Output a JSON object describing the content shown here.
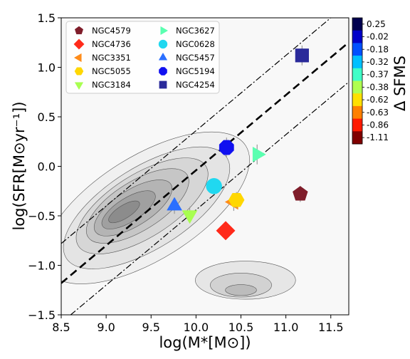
{
  "chart_data": {
    "type": "scatter",
    "xlabel": "log(M*[M⊙])",
    "ylabel": "log(SFR[M⊙yr⁻¹])",
    "xlim": [
      8.5,
      11.7
    ],
    "ylim": [
      -1.5,
      1.5
    ],
    "xticks": [
      "8.5",
      "9.0",
      "9.5",
      "10.0",
      "10.5",
      "11.0",
      "11.5"
    ],
    "yticks": [
      "−1.5",
      "−1.0",
      "−0.5",
      "0.0",
      "0.5",
      "1.0",
      "1.5"
    ],
    "legend_position": "top-left",
    "grid": false,
    "main_sequence": {
      "slope": 0.76,
      "intercept": -7.64,
      "scatter_offset": 0.4
    },
    "series": [
      {
        "name": "NGC4579",
        "x": 11.16,
        "y": -0.28,
        "yerr": 0.08,
        "marker": "pentagon",
        "color": "#7f1d2a"
      },
      {
        "name": "NGC4736",
        "x": 10.33,
        "y": -0.65,
        "yerr": 0.07,
        "marker": "diamond",
        "color": "#ff2a1a"
      },
      {
        "name": "NGC3351",
        "x": 10.42,
        "y": -0.36,
        "yerr": 0.09,
        "marker": "triangle-left",
        "color": "#ff8c1a"
      },
      {
        "name": "NGC5055",
        "x": 10.45,
        "y": -0.34,
        "yerr": 0.08,
        "marker": "hexagon",
        "color": "#ffd700"
      },
      {
        "name": "NGC3184",
        "x": 9.93,
        "y": -0.49,
        "yerr": 0.08,
        "marker": "triangle-down",
        "color": "#a8ff50"
      },
      {
        "name": "NGC3627",
        "x": 10.68,
        "y": 0.12,
        "yerr": 0.1,
        "marker": "triangle-right",
        "color": "#5affb0"
      },
      {
        "name": "NGC0628",
        "x": 10.2,
        "y": -0.2,
        "yerr": 0.07,
        "marker": "circle",
        "color": "#20d8f0"
      },
      {
        "name": "NGC5457",
        "x": 9.76,
        "y": -0.4,
        "yerr": 0.08,
        "marker": "triangle-up",
        "color": "#2a6fff"
      },
      {
        "name": "NGC5194",
        "x": 10.34,
        "y": 0.19,
        "yerr": 0.1,
        "marker": "octagon",
        "color": "#1010f0"
      },
      {
        "name": "NGC4254",
        "x": 11.18,
        "y": 1.12,
        "yerr": 0.1,
        "marker": "square",
        "color": "#2a2a9a"
      }
    ],
    "colorbar": {
      "label": "Δ SFMS",
      "ticks": [
        "0.25",
        "-0.02",
        "-0.18",
        "-0.32",
        "-0.37",
        "-0.38",
        "-0.62",
        "-0.63",
        "-0.86",
        "-1.11"
      ],
      "colors": [
        "#00004f",
        "#0000c8",
        "#0050ff",
        "#00c0ff",
        "#40ffc8",
        "#b0ff50",
        "#ffe000",
        "#ff8000",
        "#ff1a00",
        "#800000"
      ]
    }
  }
}
